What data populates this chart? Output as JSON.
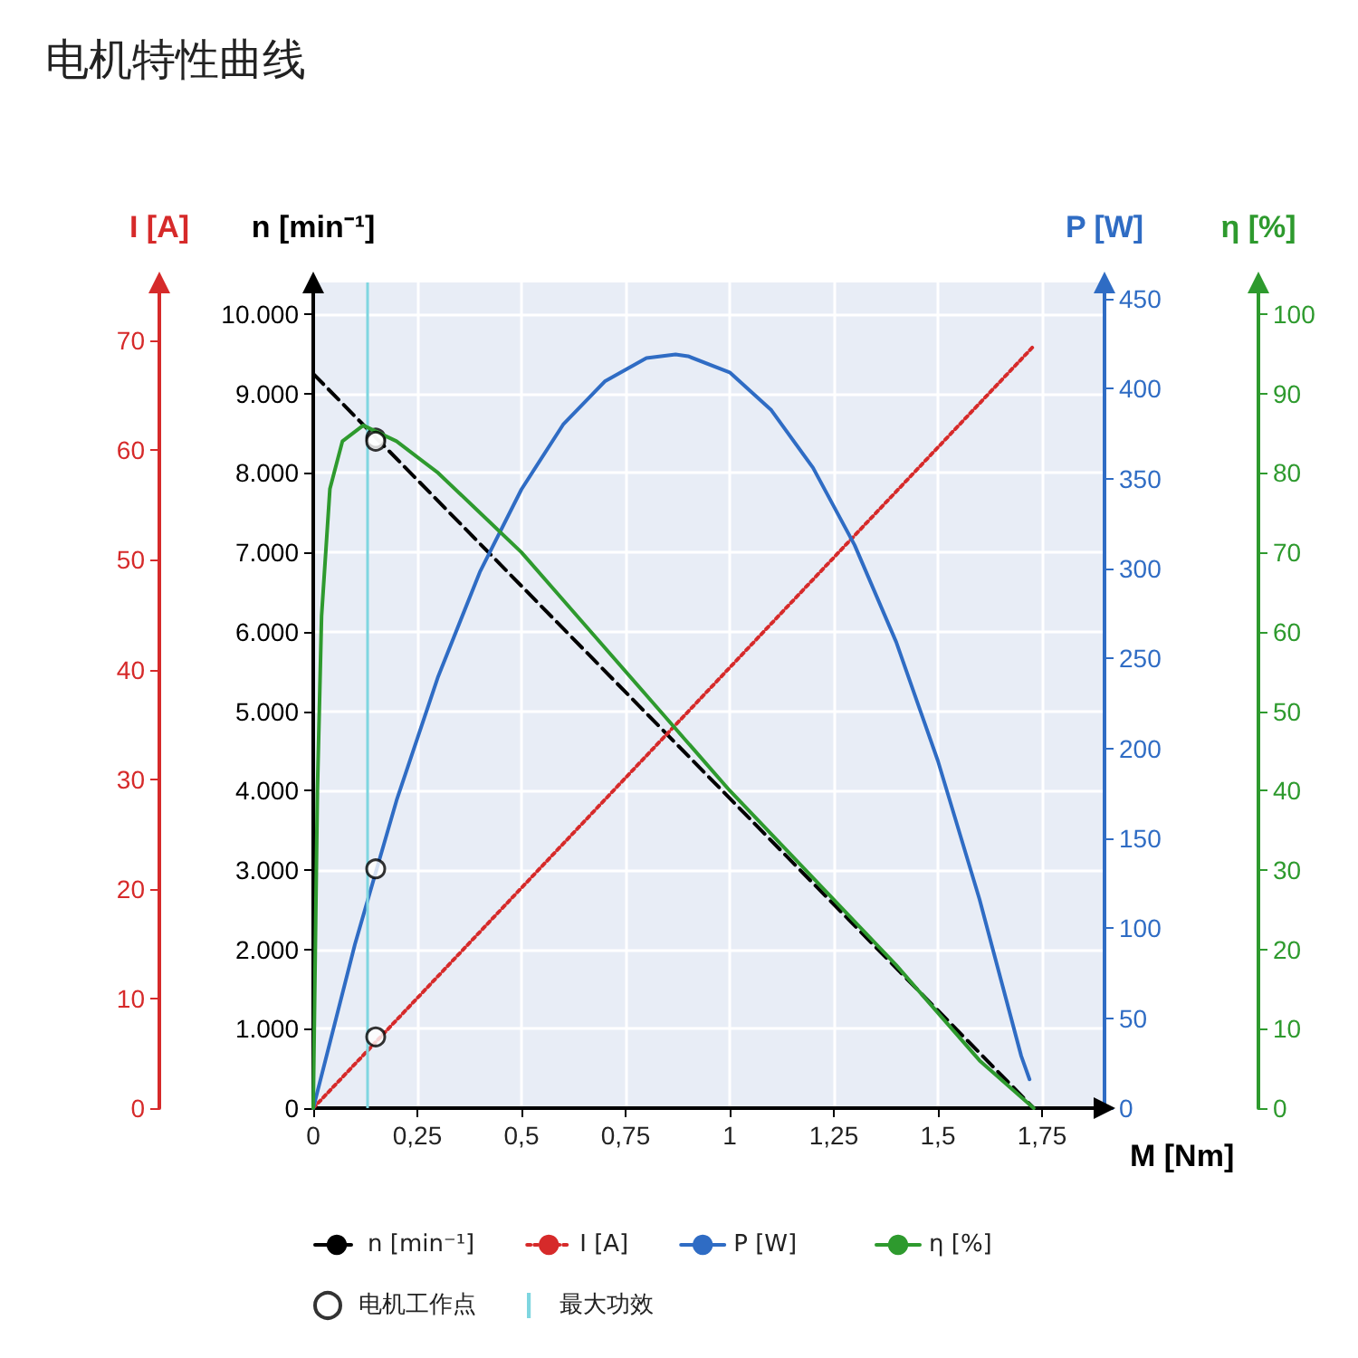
{
  "chart_data": [
    {
      "type": "line",
      "title": "电机特性曲线",
      "xlabel": "M [Nm]",
      "ylabel": "n [min⁻¹]",
      "y2label": "I [A]",
      "y3label": "P [W]",
      "xlim": [
        0,
        1.9
      ],
      "xticks": [
        0,
        {
          "value": 0.25,
          "label": "0,25"
        },
        {
          "value": 0.5,
          "label": "0,5"
        },
        {
          "value": 0.75,
          "label": "0,75"
        },
        1,
        {
          "value": 1.25,
          "label": "1,25"
        },
        {
          "value": 1.5,
          "label": "1,5"
        },
        {
          "value": 1.75,
          "label": "1,75"
        }
      ],
      "ylim": [
        0,
        10400
      ],
      "yticks": [
        0,
        {
          "value": 1000,
          "label": "1.000"
        },
        {
          "value": 2000,
          "label": "2.000"
        },
        {
          "value": 3000,
          "label": "3.000"
        },
        {
          "value": 4000,
          "label": "4.000"
        },
        {
          "value": 5000,
          "label": "5.000"
        },
        {
          "value": 6000,
          "label": "6.000"
        },
        {
          "value": 7000,
          "label": "7.000"
        },
        {
          "value": 8000,
          "label": "8.000"
        },
        {
          "value": 9000,
          "label": "9.000"
        },
        {
          "value": 10000,
          "label": "10.000"
        }
      ],
      "y2lim": [
        0,
        75.3
      ],
      "y2ticks": [
        0,
        10,
        20,
        30,
        40,
        50,
        60,
        70
      ],
      "y3lim": [
        0,
        459
      ],
      "y3ticks": [
        0,
        50,
        100,
        150,
        200,
        250,
        300,
        350,
        400,
        450
      ],
      "grid": true,
      "legend": "bottom",
      "marker": "none",
      "series": [
        {
          "name": "n [min⁻¹]",
          "color": "#000000",
          "line_style": "dashed",
          "x": [
            0,
            1.73
          ],
          "values": [
            9250,
            0
          ]
        },
        {
          "name": "I [A]",
          "color": "#d62a2a",
          "line_style": "dotted",
          "axis": "y2",
          "x": [
            0,
            1.73
          ],
          "values": [
            0,
            69.5
          ]
        },
        {
          "name": "P [W]",
          "color": "#2f6cc4",
          "line_style": "solid",
          "axis": "y3",
          "x": [
            0,
            0.1,
            0.2,
            0.3,
            0.4,
            0.5,
            0.6,
            0.7,
            0.8,
            0.87,
            0.9,
            1.0,
            1.1,
            1.2,
            1.3,
            1.4,
            1.5,
            1.6,
            1.7,
            1.72
          ],
          "values": [
            0,
            91,
            171,
            240,
            298,
            344,
            380,
            404,
            417,
            419,
            418,
            409,
            388,
            356,
            313,
            259,
            193,
            116,
            29,
            16
          ]
        },
        {
          "name": "电机工作点",
          "type": "scatter",
          "marker": "circle",
          "color": "#000000",
          "x": [
            0.15
          ],
          "values": [
            8440
          ]
        },
        {
          "type": "scatter",
          "marker": "circle",
          "color": "#000000",
          "axis": "y3",
          "x": [
            0.15
          ],
          "values": [
            133
          ]
        },
        {
          "type": "scatter",
          "marker": "circle",
          "color": "#000000",
          "axis": "y2",
          "x": [
            0.15
          ],
          "values": [
            6.5
          ]
        }
      ],
      "ref_lines": [
        {
          "axis": "x",
          "value": 0.125,
          "label": "最大功效",
          "color": "#7fd6e0"
        }
      ]
    },
    {
      "type": "line",
      "ylabel": "η [%]",
      "xlim": [
        0,
        1.9
      ],
      "ylim": [
        0,
        104
      ],
      "yticks": [
        0,
        10,
        20,
        30,
        40,
        50,
        60,
        70,
        80,
        90,
        100
      ],
      "tick_labels": "y",
      "legend": "bottom",
      "marker": "none",
      "series": [
        {
          "name": "η [%]",
          "color": "#2e9a2e",
          "line_style": "solid",
          "x": [
            0,
            0.005,
            0.01,
            0.02,
            0.04,
            0.07,
            0.12,
            0.2,
            0.3,
            0.4,
            0.5,
            0.6,
            0.8,
            1.0,
            1.2,
            1.4,
            1.6,
            1.73
          ],
          "values": [
            0,
            20,
            40,
            62,
            78,
            84,
            86,
            84,
            80,
            75,
            70,
            64,
            52,
            40,
            29,
            18,
            6,
            0
          ]
        },
        {
          "type": "scatter",
          "marker": "circle",
          "color": "#000000",
          "x": [
            0.15
          ],
          "values": [
            84
          ]
        }
      ]
    }
  ]
}
